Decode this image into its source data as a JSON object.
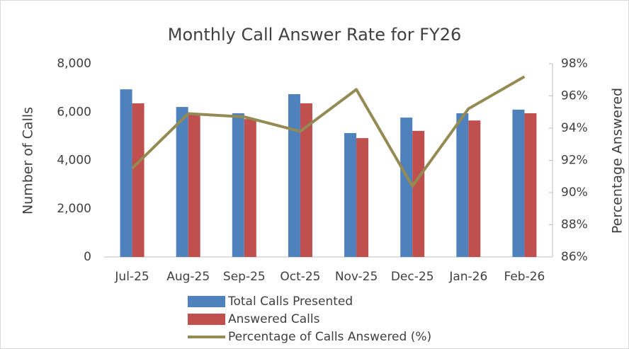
{
  "chart_data": {
    "type": "bar_line",
    "title": "Monthly Call Answer Rate for FY26",
    "y_label": "Number of Calls",
    "y2_label": "Percentage Answered",
    "categories": [
      "Jul-25",
      "Aug-25",
      "Sep-25",
      "Oct-25",
      "Nov-25",
      "Dec-25",
      "Jan-26",
      "Feb-26"
    ],
    "series": [
      {
        "name": "Total Calls Presented",
        "color": "#4f81bd",
        "type": "bar",
        "values": [
          6940,
          6210,
          5950,
          6740,
          5130,
          5770,
          5950,
          6100
        ]
      },
      {
        "name": "Answered Calls",
        "color": "#c0504d",
        "type": "bar",
        "values": [
          6360,
          5950,
          5710,
          6360,
          4920,
          5220,
          5650,
          5950
        ]
      },
      {
        "name": "Percentage of Calls Answered (%)",
        "color": "#948a54",
        "type": "line",
        "axis": "y2",
        "values": [
          91.5,
          94.9,
          94.7,
          93.8,
          96.4,
          90.4,
          95.2,
          97.2
        ]
      }
    ],
    "ylim": [
      0,
      8000
    ],
    "yticks": [
      0,
      {
        "value": 2000,
        "label": "2,000"
      },
      {
        "value": 4000,
        "label": "4,000"
      },
      {
        "value": 6000,
        "label": "6,000"
      },
      {
        "value": 8000,
        "label": "8,000"
      }
    ],
    "y2lim": [
      86,
      98
    ],
    "y2ticks": [
      {
        "value": 86,
        "label": "86%"
      },
      {
        "value": 88,
        "label": "88%"
      },
      {
        "value": 90,
        "label": "90%"
      },
      {
        "value": 92,
        "label": "92%"
      },
      {
        "value": 94,
        "label": "94%"
      },
      {
        "value": 96,
        "label": "96%"
      },
      {
        "value": 98,
        "label": "98%"
      }
    ],
    "grid": false
  }
}
